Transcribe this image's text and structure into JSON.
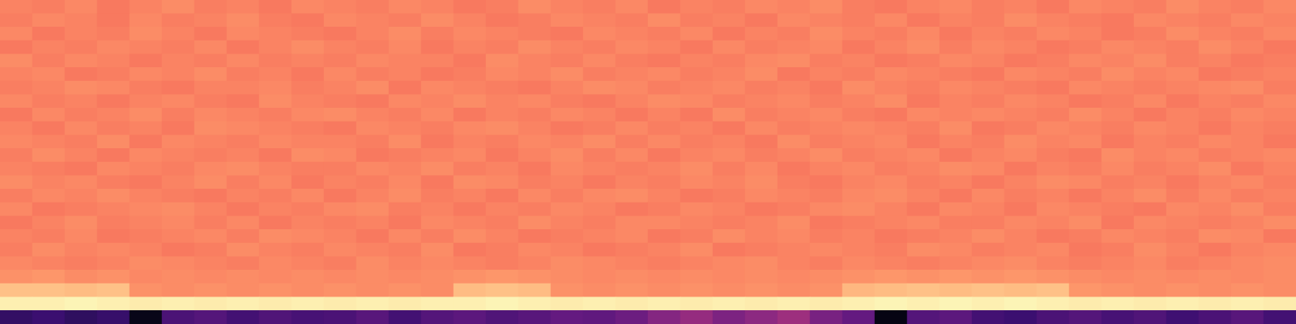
{
  "chart_data": {
    "type": "heatmap",
    "tick_labels": false,
    "grid": false,
    "zlim": [
      0,
      100
    ],
    "cells": [
      [
        74,
        73,
        75,
        72,
        74,
        76,
        73,
        74,
        72,
        75,
        74,
        73,
        75,
        74,
        72,
        73,
        76,
        74,
        73,
        75,
        72,
        74,
        73,
        75,
        74,
        76,
        73,
        72,
        74,
        75,
        73,
        74,
        72,
        75,
        74,
        73,
        76,
        74,
        73,
        75
      ],
      [
        73,
        75,
        74,
        72,
        75,
        73,
        74,
        76,
        73,
        72,
        75,
        74,
        73,
        76,
        74,
        72,
        73,
        75,
        74,
        73,
        76,
        73,
        74,
        72,
        75,
        74,
        73,
        75,
        72,
        74,
        73,
        76,
        74,
        73,
        72,
        75,
        74,
        73,
        75,
        74
      ],
      [
        75,
        72,
        74,
        73,
        76,
        74,
        72,
        75,
        74,
        73,
        72,
        74,
        76,
        73,
        75,
        74,
        73,
        72,
        75,
        74,
        73,
        75,
        72,
        74,
        73,
        76,
        74,
        73,
        75,
        72,
        74,
        73,
        75,
        74,
        72,
        73,
        76,
        74,
        73,
        75
      ],
      [
        72,
        74,
        73,
        75,
        74,
        73,
        75,
        72,
        74,
        76,
        74,
        73,
        75,
        72,
        74,
        73,
        76,
        74,
        73,
        75,
        74,
        72,
        75,
        73,
        74,
        75,
        72,
        74,
        76,
        73,
        75,
        74,
        72,
        73,
        75,
        74,
        73,
        76,
        74,
        72
      ],
      [
        76,
        73,
        75,
        74,
        72,
        74,
        73,
        75,
        73,
        74,
        73,
        75,
        74,
        74,
        72,
        76,
        74,
        73,
        75,
        73,
        72,
        74,
        73,
        75,
        76,
        73,
        74,
        72,
        73,
        75,
        74,
        72,
        73,
        75,
        74,
        76,
        73,
        74,
        72,
        73
      ],
      [
        74,
        75,
        72,
        73,
        75,
        74,
        76,
        73,
        74,
        72,
        75,
        73,
        74,
        72,
        73,
        75,
        74,
        76,
        73,
        74,
        75,
        73,
        74,
        76,
        72,
        74,
        73,
        75,
        74,
        73,
        72,
        75,
        74,
        73,
        76,
        74,
        75,
        72,
        73,
        74
      ],
      [
        73,
        74,
        76,
        75,
        73,
        72,
        74,
        74,
        75,
        73,
        74,
        76,
        72,
        75,
        74,
        73,
        72,
        74,
        76,
        75,
        73,
        74,
        75,
        73,
        74,
        72,
        76,
        74,
        73,
        75,
        74,
        73,
        72,
        75,
        74,
        73,
        74,
        75,
        76,
        73
      ],
      [
        75,
        73,
        74,
        72,
        74,
        75,
        73,
        72,
        76,
        74,
        73,
        72,
        75,
        74,
        76,
        74,
        75,
        73,
        72,
        74,
        76,
        75,
        73,
        74,
        75,
        73,
        74,
        76,
        72,
        74,
        73,
        75,
        74,
        72,
        73,
        75,
        72,
        74,
        73,
        75
      ],
      [
        72,
        75,
        73,
        74,
        76,
        73,
        75,
        74,
        73,
        75,
        76,
        74,
        73,
        75,
        72,
        74,
        73,
        75,
        74,
        72,
        74,
        72,
        76,
        73,
        74,
        75,
        73,
        72,
        75,
        74,
        75,
        74,
        73,
        76,
        74,
        72,
        74,
        73,
        75,
        74
      ],
      [
        74,
        72,
        75,
        73,
        74,
        72,
        76,
        75,
        74,
        73,
        72,
        75,
        74,
        73,
        75,
        76,
        74,
        72,
        73,
        75,
        73,
        74,
        72,
        75,
        73,
        74,
        75,
        74,
        73,
        76,
        72,
        73,
        75,
        74,
        73,
        75,
        74,
        72,
        74,
        73
      ],
      [
        75,
        74,
        73,
        76,
        72,
        75,
        74,
        73,
        75,
        74,
        74,
        73,
        76,
        72,
        74,
        73,
        75,
        74,
        76,
        73,
        75,
        73,
        74,
        72,
        76,
        73,
        74,
        75,
        72,
        74,
        73,
        76,
        74,
        75,
        72,
        74,
        73,
        75,
        74,
        72
      ],
      [
        73,
        76,
        74,
        72,
        75,
        74,
        73,
        74,
        72,
        76,
        75,
        72,
        73,
        74,
        75,
        72,
        74,
        76,
        73,
        75,
        72,
        74,
        75,
        73,
        74,
        76,
        73,
        74,
        75,
        72,
        74,
        75,
        73,
        72,
        76,
        74,
        75,
        73,
        74,
        75
      ],
      [
        74,
        73,
        72,
        75,
        74,
        73,
        75,
        76,
        74,
        73,
        73,
        75,
        74,
        76,
        73,
        74,
        72,
        75,
        74,
        73,
        74,
        76,
        73,
        75,
        72,
        74,
        75,
        73,
        74,
        76,
        75,
        72,
        74,
        73,
        75,
        73,
        74,
        76,
        72,
        74
      ],
      [
        76,
        74,
        75,
        73,
        72,
        74,
        76,
        73,
        75,
        72,
        74,
        73,
        75,
        72,
        76,
        75,
        73,
        74,
        72,
        74,
        73,
        75,
        74,
        76,
        73,
        72,
        74,
        75,
        73,
        74,
        72,
        74,
        76,
        75,
        73,
        74,
        72,
        74,
        75,
        73
      ],
      [
        73,
        75,
        74,
        76,
        74,
        73,
        72,
        74,
        73,
        75,
        72,
        74,
        76,
        73,
        74,
        72,
        75,
        73,
        75,
        76,
        74,
        72,
        73,
        75,
        74,
        73,
        75,
        76,
        74,
        72,
        75,
        73,
        74,
        72,
        74,
        76,
        73,
        75,
        73,
        74
      ],
      [
        75,
        72,
        73,
        74,
        75,
        76,
        74,
        72,
        74,
        73,
        75,
        76,
        73,
        74,
        72,
        74,
        73,
        75,
        74,
        72,
        73,
        75,
        74,
        72,
        73,
        75,
        76,
        74,
        72,
        75,
        74,
        72,
        75,
        74,
        73,
        72,
        75,
        74,
        76,
        73
      ],
      [
        72,
        74,
        76,
        73,
        74,
        75,
        73,
        75,
        72,
        74,
        73,
        74,
        72,
        75,
        74,
        73,
        76,
        74,
        73,
        75,
        75,
        74,
        73,
        74,
        76,
        72,
        73,
        74,
        75,
        73,
        73,
        75,
        74,
        76,
        72,
        75,
        74,
        73,
        74,
        76
      ],
      [
        74,
        73,
        75,
        72,
        73,
        74,
        75,
        73,
        76,
        75,
        74,
        72,
        75,
        73,
        76,
        74,
        72,
        73,
        74,
        75,
        72,
        73,
        76,
        74,
        75,
        73,
        74,
        72,
        73,
        74,
        76,
        74,
        72,
        73,
        75,
        74,
        73,
        76,
        75,
        72
      ],
      [
        73,
        76,
        74,
        75,
        74,
        72,
        73,
        76,
        74,
        73,
        75,
        74,
        73,
        76,
        72,
        73,
        75,
        74,
        72,
        73,
        74,
        76,
        72,
        73,
        74,
        75,
        74,
        73,
        76,
        75,
        73,
        74,
        75,
        72,
        73,
        76,
        74,
        72,
        74,
        75
      ],
      [
        75,
        74,
        73,
        74,
        76,
        75,
        74,
        73,
        75,
        74,
        73,
        76,
        74,
        75,
        74,
        73,
        74,
        76,
        75,
        74,
        73,
        74,
        75,
        76,
        74,
        73,
        75,
        74,
        73,
        74,
        75,
        76,
        74,
        73,
        74,
        75,
        73,
        74,
        75,
        76
      ],
      [
        77,
        78,
        76,
        77,
        75,
        76,
        75,
        76,
        75,
        76,
        75,
        76,
        75,
        76,
        77,
        78,
        77,
        76,
        75,
        76,
        75,
        76,
        75,
        76,
        75,
        76,
        77,
        78,
        77,
        78,
        77,
        78,
        77,
        76,
        75,
        76,
        75,
        76,
        75,
        76
      ],
      [
        87,
        87,
        86,
        87,
        77,
        76,
        77,
        76,
        77,
        76,
        77,
        76,
        77,
        76,
        86,
        87,
        86,
        77,
        76,
        77,
        76,
        77,
        76,
        77,
        76,
        77,
        85,
        86,
        87,
        86,
        87,
        86,
        87,
        78,
        77,
        76,
        77,
        76,
        77,
        76
      ],
      [
        97,
        97,
        98,
        97,
        96,
        97,
        96,
        97,
        96,
        97,
        96,
        97,
        96,
        97,
        97,
        98,
        97,
        96,
        97,
        96,
        97,
        96,
        97,
        96,
        97,
        96,
        97,
        98,
        97,
        98,
        97,
        98,
        97,
        96,
        97,
        96,
        97,
        96,
        97,
        96
      ],
      [
        18,
        20,
        17,
        19,
        4,
        24,
        26,
        22,
        25,
        23,
        24,
        27,
        22,
        26,
        28,
        25,
        27,
        30,
        29,
        32,
        38,
        42,
        36,
        40,
        44,
        35,
        30,
        3,
        26,
        28,
        22,
        20,
        24,
        26,
        23,
        25,
        21,
        24,
        27,
        22
      ]
    ]
  }
}
